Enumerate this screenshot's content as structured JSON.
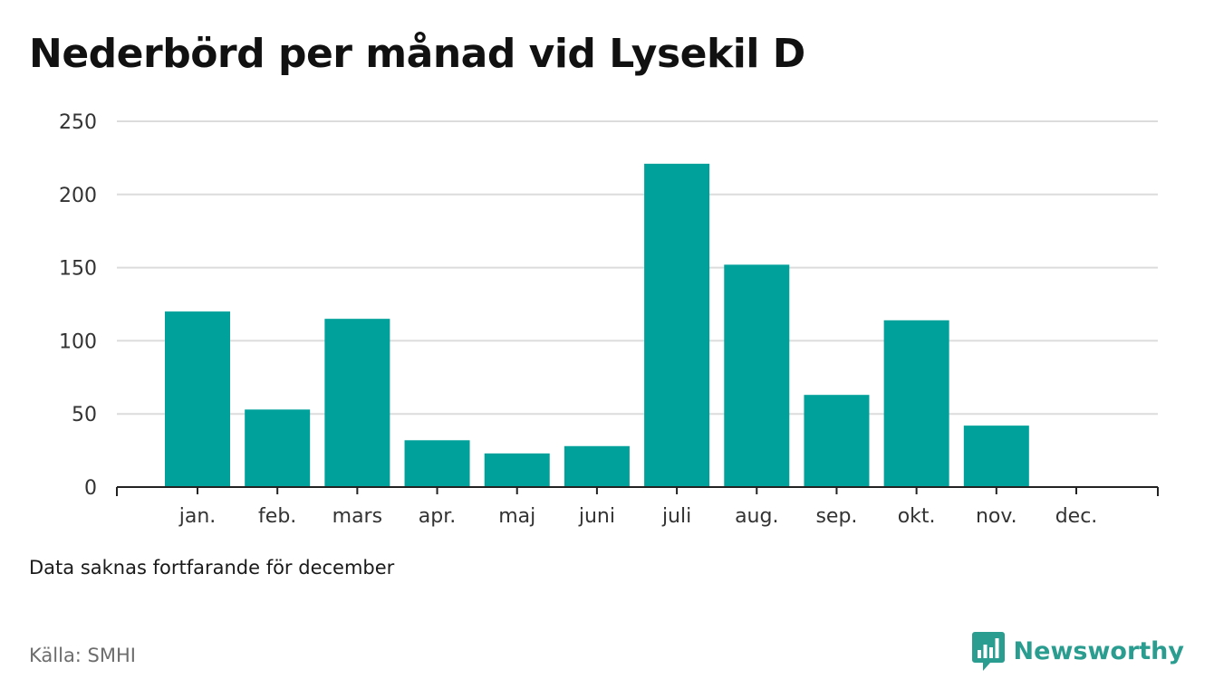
{
  "title": "Nederbörd per månad vid Lysekil D",
  "note": "Data saknas fortfarande för december",
  "source": "Källa: SMHI",
  "brand": {
    "name": "Newsworthy",
    "logo_icon": "bar-chart-speech-bubble-icon",
    "color": "#2a9d90"
  },
  "chart_data": {
    "type": "bar",
    "categories": [
      "jan.",
      "feb.",
      "mars",
      "apr.",
      "maj",
      "juni",
      "juli",
      "aug.",
      "sep.",
      "okt.",
      "nov.",
      "dec."
    ],
    "values": [
      120,
      53,
      115,
      32,
      23,
      28,
      221,
      152,
      63,
      114,
      42,
      null
    ],
    "yticks": [
      0,
      50,
      100,
      150,
      200,
      250
    ],
    "ylim": [
      0,
      250
    ],
    "grid": true,
    "bar_color": "#00a19a",
    "title": "Nederbörd per månad vid Lysekil D"
  }
}
